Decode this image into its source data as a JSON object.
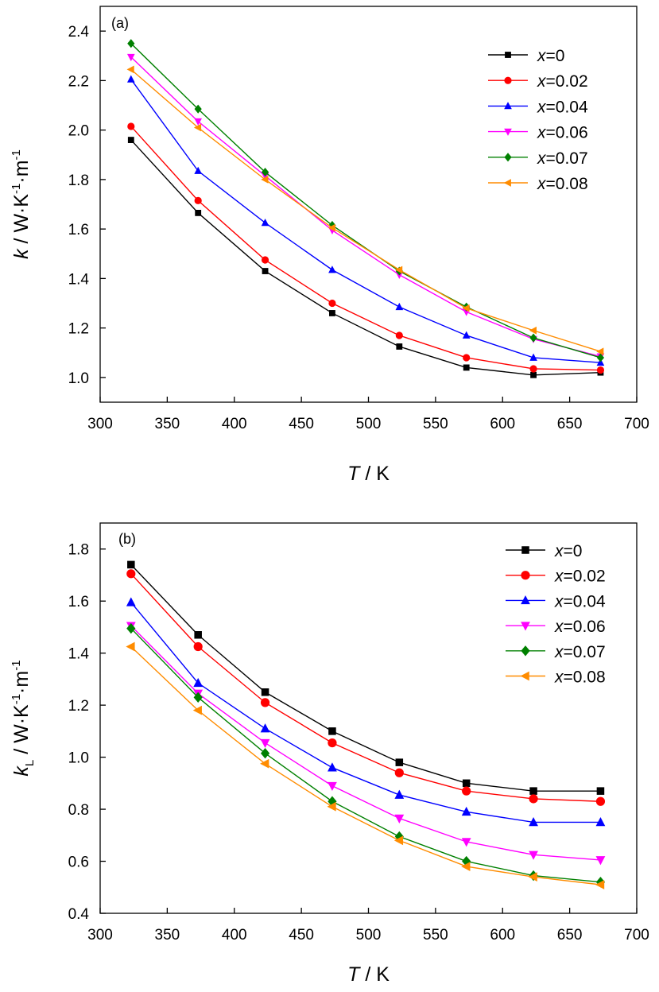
{
  "chart_data": [
    {
      "type": "line",
      "panel_label": "(a)",
      "x_var": "T",
      "x_unit": "K",
      "y_var": "k",
      "y_sub": "",
      "y_unit_main": "W·K",
      "y_unit_exp": "-1",
      "y_unit_mid": "·m",
      "xlim": [
        300,
        700
      ],
      "ylim": [
        0.9,
        2.5
      ],
      "x_ticks": [
        "300",
        "350",
        "400",
        "450",
        "500",
        "550",
        "600",
        "650",
        "700"
      ],
      "y_ticks": [
        "1.0",
        "1.2",
        "1.4",
        "1.6",
        "1.8",
        "2.0",
        "2.2",
        "2.4"
      ],
      "legend_position": "top-right",
      "grid": false,
      "x": [
        323,
        373,
        423,
        473,
        523,
        573,
        623,
        673
      ],
      "series": [
        {
          "x_var": "x",
          "label": "=0",
          "color": "#000000",
          "marker": "square",
          "values": [
            1.96,
            1.665,
            1.43,
            1.26,
            1.125,
            1.04,
            1.01,
            1.02
          ]
        },
        {
          "x_var": "x",
          "label": "=0.02",
          "color": "#ff0000",
          "marker": "circle",
          "values": [
            2.015,
            1.715,
            1.475,
            1.3,
            1.17,
            1.08,
            1.035,
            1.03
          ]
        },
        {
          "x_var": "x",
          "label": "=0.04",
          "color": "#0000ff",
          "marker": "triangle-up",
          "values": [
            2.205,
            1.835,
            1.625,
            1.435,
            1.285,
            1.17,
            1.08,
            1.06
          ]
        },
        {
          "x_var": "x",
          "label": "=0.06",
          "color": "#ff00ff",
          "marker": "triangle-down",
          "values": [
            2.295,
            2.035,
            1.815,
            1.595,
            1.415,
            1.265,
            1.155,
            1.085
          ]
        },
        {
          "x_var": "x",
          "label": "=0.07",
          "color": "#008000",
          "marker": "diamond",
          "values": [
            2.35,
            2.085,
            1.83,
            1.615,
            1.43,
            1.285,
            1.16,
            1.08
          ]
        },
        {
          "x_var": "x",
          "label": "=0.08",
          "color": "#ff8c00",
          "marker": "triangle-left",
          "values": [
            2.245,
            2.01,
            1.8,
            1.605,
            1.435,
            1.28,
            1.19,
            1.105
          ]
        }
      ]
    },
    {
      "type": "line",
      "panel_label": "(b)",
      "x_var": "T",
      "x_unit": "K",
      "y_var": "k",
      "y_sub": "L",
      "y_unit_main": "W·K",
      "y_unit_exp": "-1",
      "y_unit_mid": "·m",
      "xlim": [
        300,
        700
      ],
      "ylim": [
        0.4,
        1.9
      ],
      "x_ticks": [
        "300",
        "350",
        "400",
        "450",
        "500",
        "550",
        "600",
        "650",
        "700"
      ],
      "y_ticks": [
        "0.4",
        "0.6",
        "0.8",
        "1.0",
        "1.2",
        "1.4",
        "1.6",
        "1.8"
      ],
      "legend_position": "top-right",
      "grid": false,
      "x": [
        323,
        373,
        423,
        473,
        523,
        573,
        623,
        673
      ],
      "series": [
        {
          "x_var": "x",
          "label": "=0",
          "color": "#000000",
          "marker": "square",
          "values": [
            1.74,
            1.47,
            1.25,
            1.1,
            0.98,
            0.9,
            0.87,
            0.87
          ]
        },
        {
          "x_var": "x",
          "label": "=0.02",
          "color": "#ff0000",
          "marker": "circle",
          "values": [
            1.705,
            1.425,
            1.21,
            1.055,
            0.94,
            0.87,
            0.84,
            0.83
          ]
        },
        {
          "x_var": "x",
          "label": "=0.04",
          "color": "#0000ff",
          "marker": "triangle-up",
          "values": [
            1.595,
            1.285,
            1.11,
            0.96,
            0.855,
            0.79,
            0.75,
            0.75
          ]
        },
        {
          "x_var": "x",
          "label": "=0.06",
          "color": "#ff00ff",
          "marker": "triangle-down",
          "values": [
            1.505,
            1.245,
            1.055,
            0.89,
            0.765,
            0.675,
            0.625,
            0.605
          ]
        },
        {
          "x_var": "x",
          "label": "=0.07",
          "color": "#008000",
          "marker": "diamond",
          "values": [
            1.495,
            1.23,
            1.015,
            0.83,
            0.695,
            0.6,
            0.545,
            0.52
          ]
        },
        {
          "x_var": "x",
          "label": "=0.08",
          "color": "#ff8c00",
          "marker": "triangle-left",
          "values": [
            1.425,
            1.18,
            0.975,
            0.81,
            0.68,
            0.58,
            0.54,
            0.51
          ]
        }
      ]
    }
  ]
}
